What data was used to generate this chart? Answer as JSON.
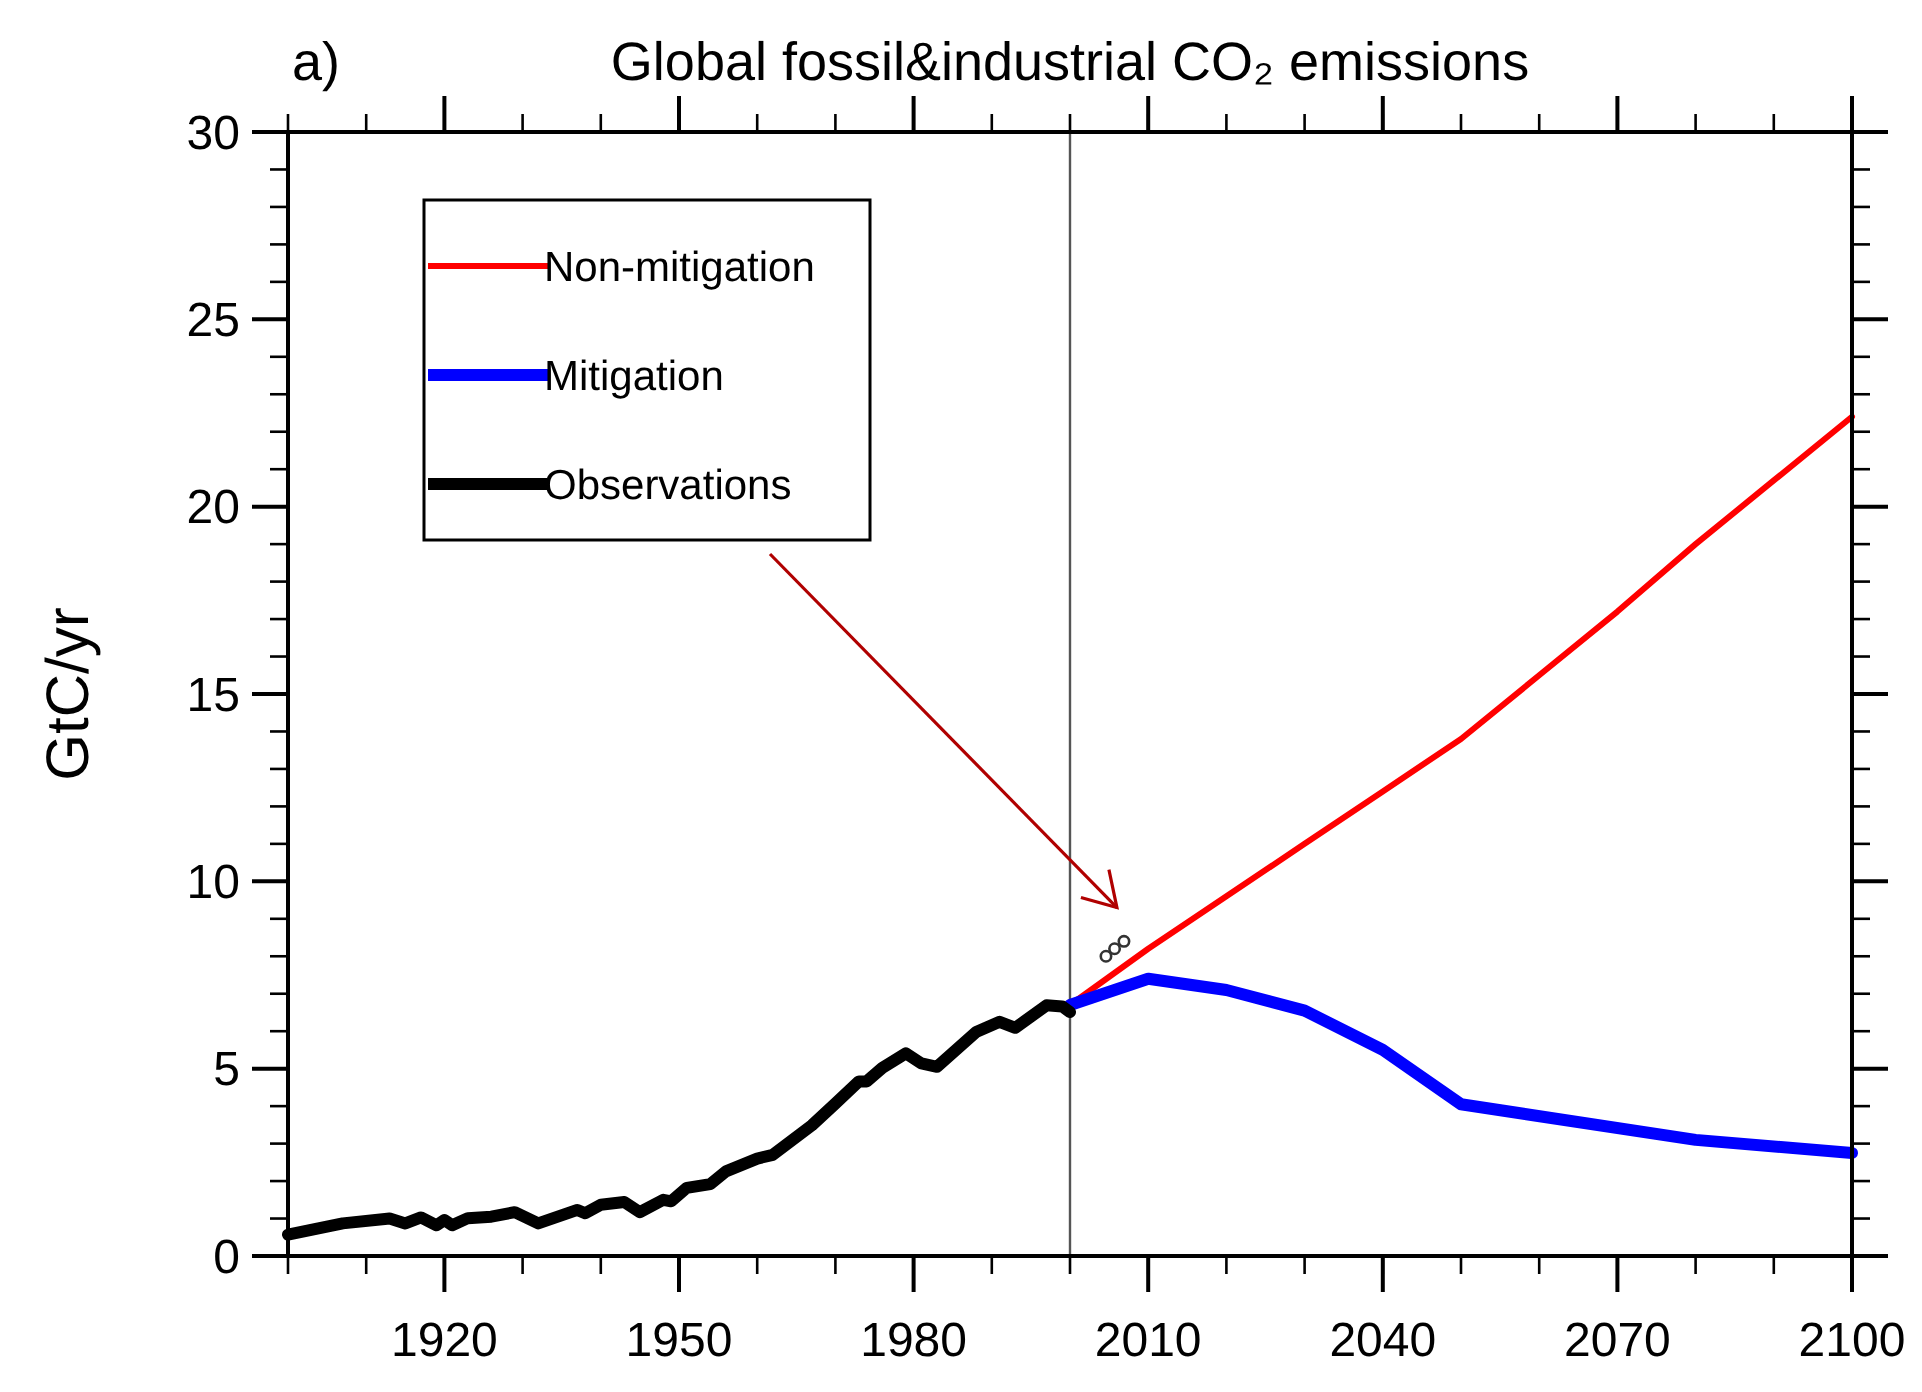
{
  "chart_data": {
    "type": "line",
    "title": "Global fossil&industrial CO₂ emissions",
    "ylabel": "GtC/yr",
    "annotations": [
      "a)"
    ],
    "xlim": [
      1900,
      2100
    ],
    "xticks": [
      1920,
      1950,
      1980,
      2010,
      2040,
      2070,
      2100
    ],
    "ylim": [
      0,
      30
    ],
    "yticks": [
      0,
      5,
      10,
      15,
      20,
      25,
      30
    ],
    "grid": false,
    "legend": "top left",
    "marker": "none",
    "line_style": "solid",
    "ref_lines": [
      {
        "axis": "x",
        "value": 2000,
        "color": "#555555"
      }
    ],
    "series": [
      {
        "name": "Non-mitigation",
        "color": "#ff0000",
        "x": [
          2000,
          2010,
          2020,
          2030,
          2040,
          2050,
          2060,
          2070,
          2080,
          2090,
          2100
        ],
        "values": [
          6.7,
          8.2,
          9.6,
          11.0,
          12.4,
          13.8,
          15.5,
          17.2,
          19.0,
          20.7,
          22.4
        ]
      },
      {
        "name": "Mitigation",
        "color": "#0000ff",
        "x": [
          2000,
          2010,
          2020,
          2030,
          2040,
          2050,
          2080,
          2100
        ],
        "values": [
          6.7,
          7.4,
          7.1,
          6.55,
          5.5,
          4.05,
          3.1,
          2.75
        ]
      },
      {
        "name": "Observations",
        "color": "#000000",
        "x": [
          1900,
          1907,
          1913,
          1915,
          1917,
          1919,
          1920,
          1921,
          1923,
          1926,
          1929,
          1932,
          1937,
          1938,
          1940,
          1943,
          1945,
          1948,
          1949,
          1951,
          1954,
          1956,
          1960,
          1962,
          1967,
          1970,
          1973,
          1974,
          1976,
          1979,
          1981,
          1983,
          1988,
          1991,
          1993,
          1997,
          1999,
          2000
        ],
        "values": [
          0.57,
          0.87,
          1.0,
          0.87,
          1.03,
          0.82,
          0.96,
          0.82,
          1.01,
          1.05,
          1.17,
          0.87,
          1.23,
          1.14,
          1.37,
          1.44,
          1.17,
          1.5,
          1.46,
          1.82,
          1.92,
          2.26,
          2.6,
          2.7,
          3.49,
          4.07,
          4.66,
          4.66,
          5.02,
          5.41,
          5.14,
          5.05,
          5.98,
          6.25,
          6.09,
          6.69,
          6.66,
          6.51
        ]
      },
      {
        "type": "scatter",
        "marker": "circle",
        "color": "#333333",
        "x": [
          2004.6,
          2005.7,
          2006.9
        ],
        "values": [
          8.0,
          8.2,
          8.4
        ]
      }
    ]
  }
}
